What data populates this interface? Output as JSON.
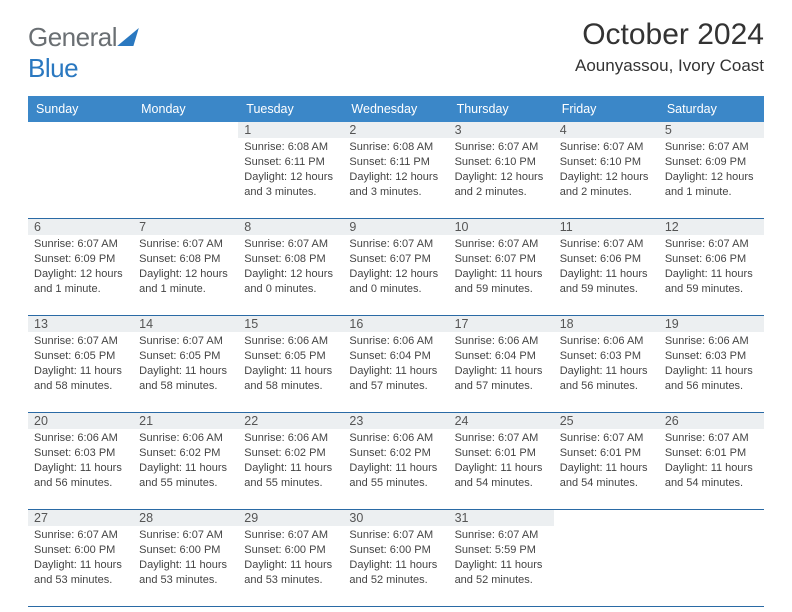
{
  "logo": {
    "general": "General",
    "blue": "Blue"
  },
  "title": {
    "month": "October 2024",
    "location": "Aounyassou, Ivory Coast"
  },
  "weekdays": [
    "Sunday",
    "Monday",
    "Tuesday",
    "Wednesday",
    "Thursday",
    "Friday",
    "Saturday"
  ],
  "styling": {
    "header_bg": "#3b87c8",
    "header_text": "#ffffff",
    "daynum_bg": "#eceff1",
    "border_color": "#2a6aa5",
    "body_bg": "#ffffff",
    "text_color": "#444444",
    "title_fontsize": 30,
    "location_fontsize": 17,
    "weekday_fontsize": 12.5,
    "cell_fontsize": 11
  },
  "weeks": [
    [
      null,
      null,
      {
        "n": "1",
        "sr": "Sunrise: 6:08 AM",
        "ss": "Sunset: 6:11 PM",
        "d1": "Daylight: 12 hours",
        "d2": "and 3 minutes."
      },
      {
        "n": "2",
        "sr": "Sunrise: 6:08 AM",
        "ss": "Sunset: 6:11 PM",
        "d1": "Daylight: 12 hours",
        "d2": "and 3 minutes."
      },
      {
        "n": "3",
        "sr": "Sunrise: 6:07 AM",
        "ss": "Sunset: 6:10 PM",
        "d1": "Daylight: 12 hours",
        "d2": "and 2 minutes."
      },
      {
        "n": "4",
        "sr": "Sunrise: 6:07 AM",
        "ss": "Sunset: 6:10 PM",
        "d1": "Daylight: 12 hours",
        "d2": "and 2 minutes."
      },
      {
        "n": "5",
        "sr": "Sunrise: 6:07 AM",
        "ss": "Sunset: 6:09 PM",
        "d1": "Daylight: 12 hours",
        "d2": "and 1 minute."
      }
    ],
    [
      {
        "n": "6",
        "sr": "Sunrise: 6:07 AM",
        "ss": "Sunset: 6:09 PM",
        "d1": "Daylight: 12 hours",
        "d2": "and 1 minute."
      },
      {
        "n": "7",
        "sr": "Sunrise: 6:07 AM",
        "ss": "Sunset: 6:08 PM",
        "d1": "Daylight: 12 hours",
        "d2": "and 1 minute."
      },
      {
        "n": "8",
        "sr": "Sunrise: 6:07 AM",
        "ss": "Sunset: 6:08 PM",
        "d1": "Daylight: 12 hours",
        "d2": "and 0 minutes."
      },
      {
        "n": "9",
        "sr": "Sunrise: 6:07 AM",
        "ss": "Sunset: 6:07 PM",
        "d1": "Daylight: 12 hours",
        "d2": "and 0 minutes."
      },
      {
        "n": "10",
        "sr": "Sunrise: 6:07 AM",
        "ss": "Sunset: 6:07 PM",
        "d1": "Daylight: 11 hours",
        "d2": "and 59 minutes."
      },
      {
        "n": "11",
        "sr": "Sunrise: 6:07 AM",
        "ss": "Sunset: 6:06 PM",
        "d1": "Daylight: 11 hours",
        "d2": "and 59 minutes."
      },
      {
        "n": "12",
        "sr": "Sunrise: 6:07 AM",
        "ss": "Sunset: 6:06 PM",
        "d1": "Daylight: 11 hours",
        "d2": "and 59 minutes."
      }
    ],
    [
      {
        "n": "13",
        "sr": "Sunrise: 6:07 AM",
        "ss": "Sunset: 6:05 PM",
        "d1": "Daylight: 11 hours",
        "d2": "and 58 minutes."
      },
      {
        "n": "14",
        "sr": "Sunrise: 6:07 AM",
        "ss": "Sunset: 6:05 PM",
        "d1": "Daylight: 11 hours",
        "d2": "and 58 minutes."
      },
      {
        "n": "15",
        "sr": "Sunrise: 6:06 AM",
        "ss": "Sunset: 6:05 PM",
        "d1": "Daylight: 11 hours",
        "d2": "and 58 minutes."
      },
      {
        "n": "16",
        "sr": "Sunrise: 6:06 AM",
        "ss": "Sunset: 6:04 PM",
        "d1": "Daylight: 11 hours",
        "d2": "and 57 minutes."
      },
      {
        "n": "17",
        "sr": "Sunrise: 6:06 AM",
        "ss": "Sunset: 6:04 PM",
        "d1": "Daylight: 11 hours",
        "d2": "and 57 minutes."
      },
      {
        "n": "18",
        "sr": "Sunrise: 6:06 AM",
        "ss": "Sunset: 6:03 PM",
        "d1": "Daylight: 11 hours",
        "d2": "and 56 minutes."
      },
      {
        "n": "19",
        "sr": "Sunrise: 6:06 AM",
        "ss": "Sunset: 6:03 PM",
        "d1": "Daylight: 11 hours",
        "d2": "and 56 minutes."
      }
    ],
    [
      {
        "n": "20",
        "sr": "Sunrise: 6:06 AM",
        "ss": "Sunset: 6:03 PM",
        "d1": "Daylight: 11 hours",
        "d2": "and 56 minutes."
      },
      {
        "n": "21",
        "sr": "Sunrise: 6:06 AM",
        "ss": "Sunset: 6:02 PM",
        "d1": "Daylight: 11 hours",
        "d2": "and 55 minutes."
      },
      {
        "n": "22",
        "sr": "Sunrise: 6:06 AM",
        "ss": "Sunset: 6:02 PM",
        "d1": "Daylight: 11 hours",
        "d2": "and 55 minutes."
      },
      {
        "n": "23",
        "sr": "Sunrise: 6:06 AM",
        "ss": "Sunset: 6:02 PM",
        "d1": "Daylight: 11 hours",
        "d2": "and 55 minutes."
      },
      {
        "n": "24",
        "sr": "Sunrise: 6:07 AM",
        "ss": "Sunset: 6:01 PM",
        "d1": "Daylight: 11 hours",
        "d2": "and 54 minutes."
      },
      {
        "n": "25",
        "sr": "Sunrise: 6:07 AM",
        "ss": "Sunset: 6:01 PM",
        "d1": "Daylight: 11 hours",
        "d2": "and 54 minutes."
      },
      {
        "n": "26",
        "sr": "Sunrise: 6:07 AM",
        "ss": "Sunset: 6:01 PM",
        "d1": "Daylight: 11 hours",
        "d2": "and 54 minutes."
      }
    ],
    [
      {
        "n": "27",
        "sr": "Sunrise: 6:07 AM",
        "ss": "Sunset: 6:00 PM",
        "d1": "Daylight: 11 hours",
        "d2": "and 53 minutes."
      },
      {
        "n": "28",
        "sr": "Sunrise: 6:07 AM",
        "ss": "Sunset: 6:00 PM",
        "d1": "Daylight: 11 hours",
        "d2": "and 53 minutes."
      },
      {
        "n": "29",
        "sr": "Sunrise: 6:07 AM",
        "ss": "Sunset: 6:00 PM",
        "d1": "Daylight: 11 hours",
        "d2": "and 53 minutes."
      },
      {
        "n": "30",
        "sr": "Sunrise: 6:07 AM",
        "ss": "Sunset: 6:00 PM",
        "d1": "Daylight: 11 hours",
        "d2": "and 52 minutes."
      },
      {
        "n": "31",
        "sr": "Sunrise: 6:07 AM",
        "ss": "Sunset: 5:59 PM",
        "d1": "Daylight: 11 hours",
        "d2": "and 52 minutes."
      },
      null,
      null
    ]
  ]
}
